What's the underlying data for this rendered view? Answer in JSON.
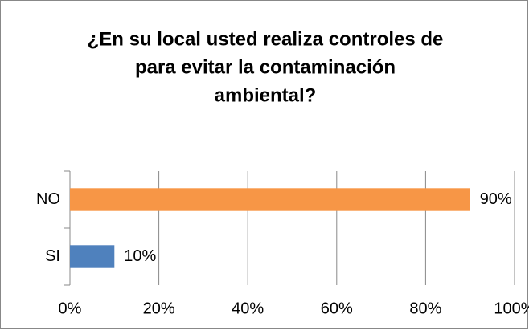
{
  "chart_data": {
    "type": "barh",
    "title": [
      "¿En su local usted realiza controles de",
      "para evitar la contaminación",
      "ambiental?"
    ],
    "categories": [
      "NO",
      "SI"
    ],
    "values": [
      90,
      10
    ],
    "value_labels": [
      "90%",
      "10%"
    ],
    "colors": [
      "#f79646",
      "#4f81bd"
    ],
    "xlim": [
      0,
      100
    ],
    "xticks": [
      {
        "value": 0,
        "label": "0%"
      },
      {
        "value": 20,
        "label": "20%"
      },
      {
        "value": 40,
        "label": "40%"
      },
      {
        "value": 60,
        "label": "60%"
      },
      {
        "value": 80,
        "label": "80%"
      },
      {
        "value": 100,
        "label": "100%"
      }
    ],
    "grid": true
  }
}
